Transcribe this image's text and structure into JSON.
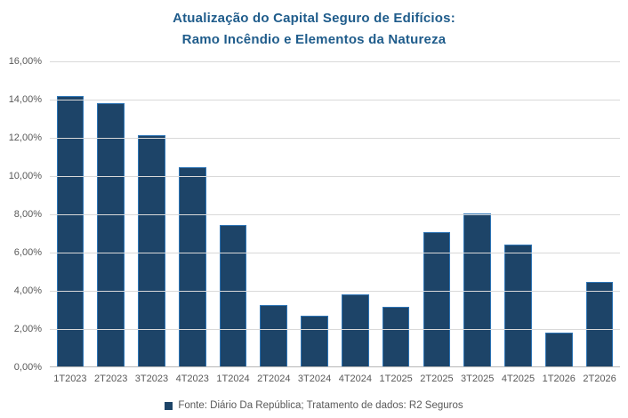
{
  "chart_data": {
    "type": "bar",
    "title_lines": [
      "Atualização do Capital Seguro de Edifícios:",
      "Ramo Incêndio e Elementos da Natureza"
    ],
    "categories": [
      "1T2023",
      "2T2023",
      "3T2023",
      "4T2023",
      "1T2024",
      "2T2024",
      "3T2024",
      "4T2024",
      "1T2025",
      "2T2025",
      "3T2025",
      "4T2025",
      "1T2026",
      "2T2026"
    ],
    "values": [
      14.2,
      13.8,
      12.15,
      10.45,
      7.45,
      3.25,
      2.7,
      3.8,
      3.15,
      7.05,
      8.05,
      6.4,
      1.8,
      4.45
    ],
    "value_unit": "%",
    "ylim": [
      0,
      16
    ],
    "ytick_step": 2,
    "ytick_labels_top_to_bottom": [
      "16,00%",
      "14,00%",
      "12,00%",
      "10,00%",
      "8,00%",
      "6,00%",
      "4,00%",
      "2,00%",
      "0,00%"
    ],
    "grid": true,
    "legend_position": "bottom",
    "legend_label": "Fonte: Diário Da República; Tratamento de dados: R2 Seguros",
    "colors": {
      "bar_fill": "#1d4468",
      "bar_border": "#2e75b6",
      "gridline": "#d9d9d9",
      "axis_line": "#b7b7b7",
      "tick_text": "#595959",
      "title_text": "#1f5c8b"
    }
  }
}
